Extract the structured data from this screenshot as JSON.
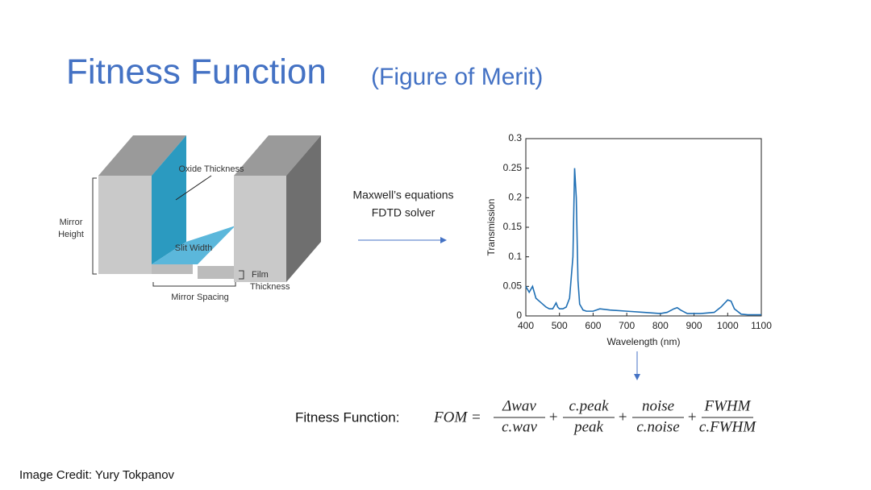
{
  "title": "Fitness Function",
  "subtitle": "(Figure of Merit)",
  "diagram": {
    "oxide_thickness": "Oxide Thickness",
    "mirror_height": [
      "Mirror",
      "Height"
    ],
    "slit_width": "Slit Width",
    "film_thickness": [
      "Film",
      "Thickness"
    ],
    "mirror_spacing": "Mirror Spacing"
  },
  "solver": [
    "Maxwell’s equations",
    "FDTD solver"
  ],
  "chart_data": {
    "type": "line",
    "xlabel": "Wavelength (nm)",
    "ylabel": "Transmission",
    "x": [
      400,
      410,
      420,
      430,
      440,
      450,
      460,
      470,
      480,
      490,
      495,
      500,
      510,
      520,
      530,
      540,
      545,
      550,
      555,
      560,
      570,
      580,
      600,
      620,
      650,
      700,
      750,
      800,
      820,
      840,
      850,
      860,
      880,
      920,
      960,
      980,
      1000,
      1010,
      1020,
      1040,
      1060,
      1080,
      1100
    ],
    "series": [
      {
        "color": "#1f6fb4",
        "values": [
          0.05,
          0.04,
          0.05,
          0.03,
          0.025,
          0.02,
          0.015,
          0.012,
          0.012,
          0.022,
          0.015,
          0.012,
          0.012,
          0.015,
          0.03,
          0.1,
          0.25,
          0.2,
          0.06,
          0.02,
          0.01,
          0.008,
          0.008,
          0.012,
          0.01,
          0.008,
          0.006,
          0.004,
          0.006,
          0.012,
          0.014,
          0.01,
          0.004,
          0.004,
          0.006,
          0.015,
          0.027,
          0.025,
          0.012,
          0.003,
          0.002,
          0.002,
          0.002
        ]
      }
    ],
    "xlim": [
      400,
      1100
    ],
    "xticks": [
      400,
      500,
      600,
      700,
      800,
      900,
      1000,
      1100
    ],
    "ylim": [
      0,
      0.3
    ],
    "yticks": [
      0,
      0.05,
      0.1,
      0.15,
      0.2,
      0.25,
      0.3
    ]
  },
  "formula": {
    "label": "Fitness Function:",
    "lhs": "FOM =",
    "plus": "+",
    "terms": [
      {
        "num": "Δwav",
        "den": "c.wav"
      },
      {
        "num": "c.peak",
        "den": "peak"
      },
      {
        "num": "noise",
        "den": "c.noise"
      },
      {
        "num": "FWHM",
        "den": "c.FWHM"
      }
    ]
  },
  "credit": "Image Credit: Yury Tokpanov"
}
